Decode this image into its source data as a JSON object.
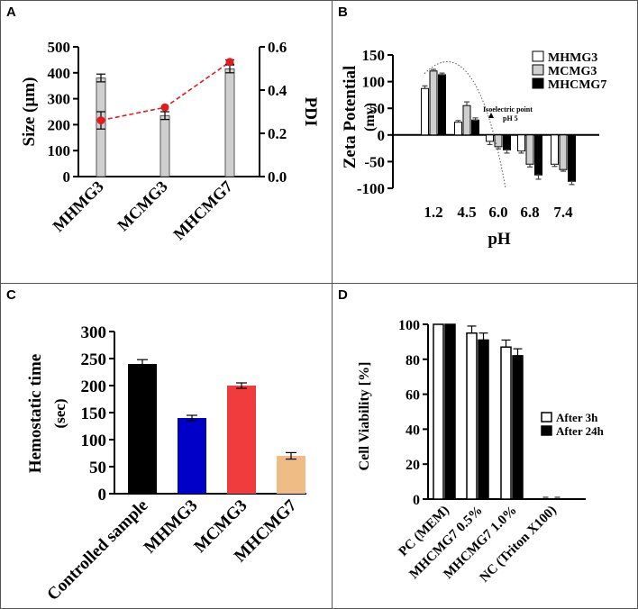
{
  "panels": {
    "a": "A",
    "b": "B",
    "c": "C",
    "d": "D"
  },
  "colors": {
    "bar_gray": "#cfcfcf",
    "pdi_red": "#e41a1c",
    "black": "#000000",
    "blue": "#0000c8",
    "red": "#f03c3c",
    "peach": "#f0bc86"
  },
  "chart_data": [
    {
      "id": "A",
      "type": "bar",
      "categories": [
        "MHMG3",
        "MCMG3",
        "MHCMG7"
      ],
      "series": [
        {
          "name": "Size (µm)",
          "values": [
            380,
            235,
            415
          ],
          "errors": [
            15,
            15,
            15
          ]
        },
        {
          "name": "PDI",
          "type": "line",
          "values": [
            0.26,
            0.32,
            0.53
          ],
          "errors": [
            0.04,
            0,
            0.01
          ]
        }
      ],
      "ylabel": "Size (µm)",
      "y2label": "PDI",
      "ylim": [
        0,
        500
      ],
      "y2lim": [
        0,
        0.6
      ],
      "yticks": [
        "0",
        "100",
        "200",
        "300",
        "400",
        "500"
      ],
      "y2ticks": [
        "0.0",
        "0.2",
        "0.4",
        "0.6"
      ]
    },
    {
      "id": "B",
      "type": "bar",
      "categories": [
        "1.2",
        "4.5",
        "6.0",
        "6.8",
        "7.4"
      ],
      "series": [
        {
          "name": "MHMG3",
          "values": [
            87,
            24,
            -12,
            -30,
            -55
          ],
          "errors": [
            5,
            3,
            6,
            4,
            4
          ]
        },
        {
          "name": "MCMG3",
          "values": [
            120,
            55,
            -22,
            -55,
            -65
          ],
          "errors": [
            3,
            7,
            4,
            5,
            3
          ]
        },
        {
          "name": "MHCMG7",
          "values": [
            113,
            28,
            -28,
            -75,
            -87
          ],
          "errors": [
            3,
            4,
            6,
            8,
            6
          ]
        }
      ],
      "xlabel": "pH",
      "ylabel": "Zeta Potential",
      "ylabel2": "(mv)",
      "ylim": [
        -100,
        150
      ],
      "yticks": [
        "-100",
        "-50",
        "0",
        "50",
        "100",
        "150"
      ],
      "annotation": {
        "line1": "Isoelectric point",
        "line2": "pH 5"
      }
    },
    {
      "id": "C",
      "type": "bar",
      "categories": [
        "Controlled sample",
        "MHMG3",
        "MCMG3",
        "MHCMG7"
      ],
      "values": [
        240,
        140,
        200,
        70
      ],
      "errors": [
        8,
        5,
        5,
        6
      ],
      "ylabel": "Hemostatic time",
      "ylabel2": "(sec)",
      "ylim": [
        0,
        300
      ],
      "yticks": [
        "0",
        "50",
        "100",
        "150",
        "200",
        "250",
        "300"
      ]
    },
    {
      "id": "D",
      "type": "bar",
      "categories": [
        "PC (MEM)",
        "MHCMG7 0.5%",
        "MHCMG7 1.0%",
        "NC (Triton X100)"
      ],
      "series": [
        {
          "name": "After 3h",
          "values": [
            100,
            95,
            87,
            0
          ],
          "errors": [
            0,
            4,
            4,
            0
          ]
        },
        {
          "name": "After 24h",
          "values": [
            100,
            91,
            82,
            0
          ],
          "errors": [
            0,
            4,
            4,
            0
          ]
        }
      ],
      "ylabel": "Cell Viability  [%]",
      "ylim": [
        0,
        100
      ],
      "yticks": [
        "0",
        "20",
        "40",
        "60",
        "80",
        "100"
      ]
    }
  ]
}
